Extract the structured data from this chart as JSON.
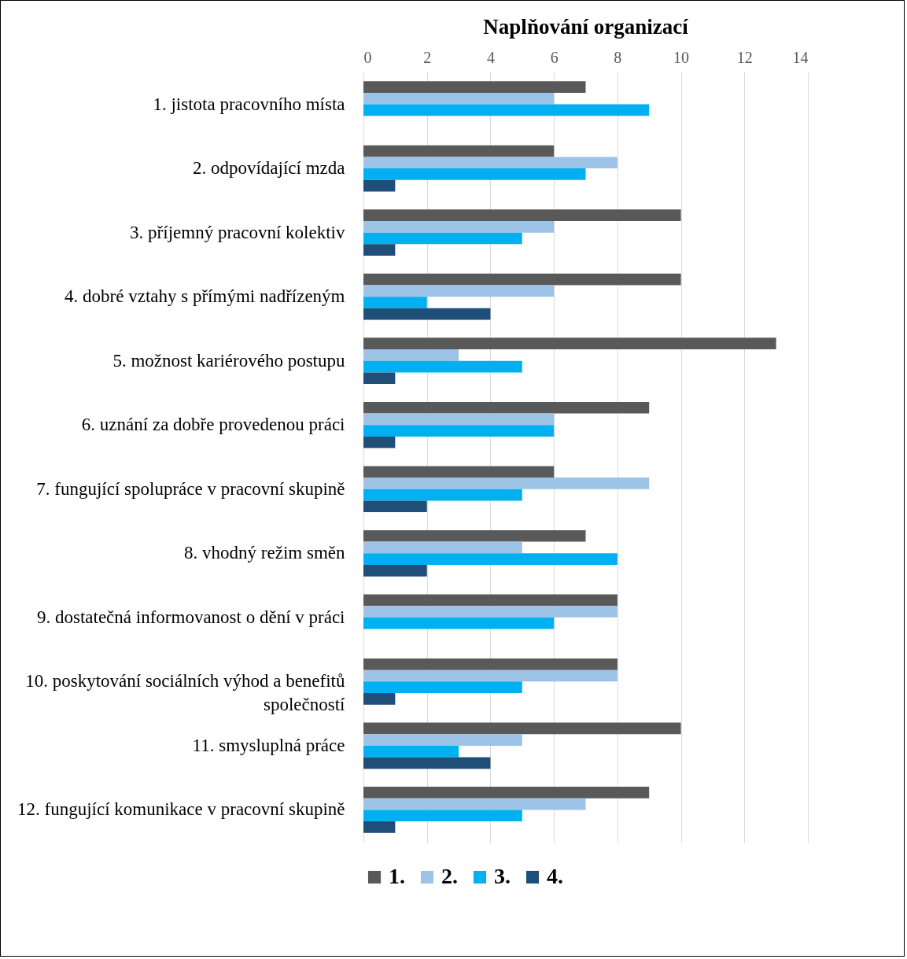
{
  "chart_data": {
    "type": "bar",
    "orientation": "horizontal",
    "title": "Naplňování organizací",
    "categories": [
      "1. jistota pracovního místa",
      "2. odpovídající mzda",
      "3. příjemný pracovní kolektiv ",
      "4. dobré vztahy s přímými nadřízeným",
      "5. možnost kariérového postupu",
      "6. uznání za dobře provedenou práci",
      "7. fungující spolupráce v pracovní skupině",
      "8. vhodný režim směn",
      "9. dostatečná informovanost o dění v práci",
      "10. poskytování sociálních výhod a benefitů společností",
      "11. smysluplná práce",
      "12. fungující komunikace v pracovní skupině"
    ],
    "series": [
      {
        "name": "1.",
        "color": "#595959",
        "values": [
          7,
          6,
          10,
          10,
          13,
          9,
          6,
          7,
          8,
          8,
          10,
          9
        ]
      },
      {
        "name": "2.",
        "color": "#9dc3e6",
        "values": [
          6,
          8,
          6,
          6,
          3,
          6,
          9,
          5,
          8,
          8,
          5,
          7
        ]
      },
      {
        "name": "3.",
        "color": "#00b0f0",
        "values": [
          9,
          7,
          5,
          2,
          5,
          6,
          5,
          8,
          6,
          5,
          3,
          5
        ]
      },
      {
        "name": "4.",
        "color": "#1f4e79",
        "values": [
          null,
          1,
          1,
          4,
          1,
          1,
          2,
          2,
          null,
          1,
          4,
          1
        ]
      }
    ],
    "xlim": [
      0,
      14
    ],
    "xticks": [
      0,
      2,
      4,
      6,
      8,
      10,
      12,
      14
    ],
    "grid": "x",
    "legend": "bottom"
  }
}
